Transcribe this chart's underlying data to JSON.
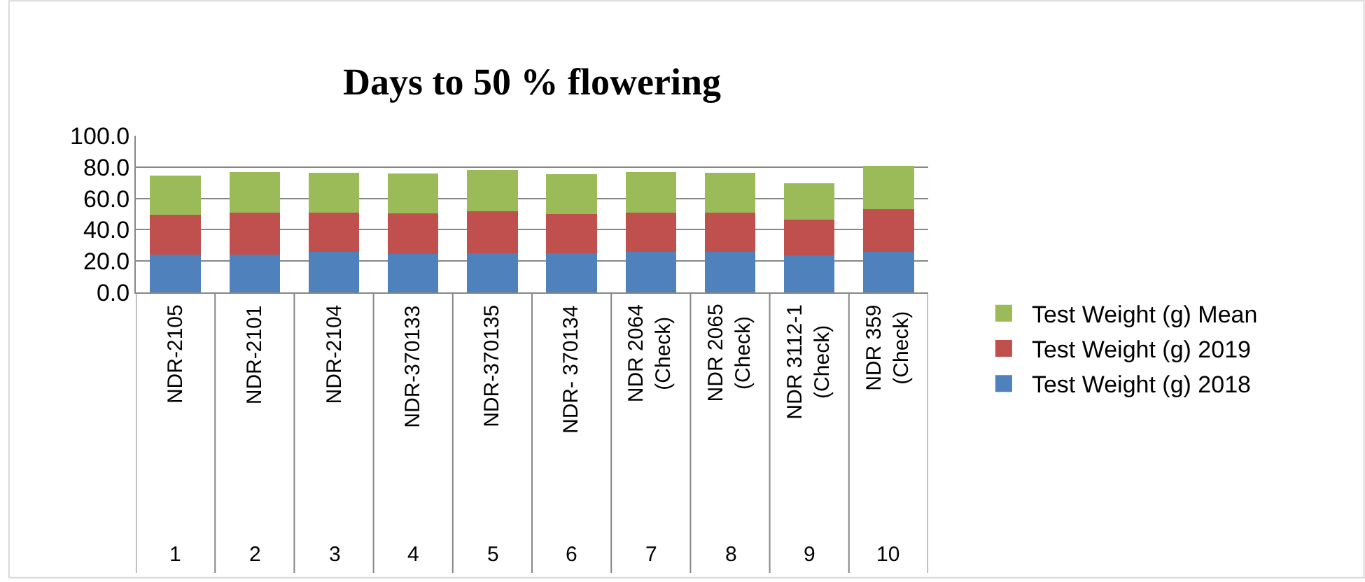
{
  "chart_data": {
    "type": "bar",
    "title": "Days to 50 % flowering",
    "stacked": true,
    "categories": [
      "NDR-2105",
      "NDR-2101",
      "NDR-2104",
      "NDR-370133",
      "NDR-370135",
      "NDR- 370134",
      "NDR 2064 (Check)",
      "NDR 2065 (Check)",
      "NDR 3112-1 (Check)",
      "NDR 359 (Check)"
    ],
    "series": [
      {
        "name": "Test Weight (g) 2018",
        "color": "#4f81bd",
        "values": [
          24,
          24,
          26,
          24.5,
          25,
          25,
          26,
          26,
          23.5,
          26
        ]
      },
      {
        "name": "Test Weight (g) 2019",
        "color": "#c0504d",
        "values": [
          25.5,
          27,
          25,
          26,
          27,
          25,
          25,
          25,
          23,
          27
        ]
      },
      {
        "name": "Test Weight (g) Mean",
        "color": "#9bbb59",
        "values": [
          25,
          26,
          25.5,
          25.5,
          26,
          25.5,
          26,
          25.5,
          23,
          28
        ]
      }
    ],
    "annotations": [
      "1",
      "2",
      "3",
      "4",
      "5",
      "6",
      "7",
      "8",
      "9",
      "10"
    ],
    "ylim": [
      0,
      100
    ],
    "yticks": [
      {
        "value": 0,
        "label": "0.0"
      },
      {
        "value": 20,
        "label": "20.0"
      },
      {
        "value": 40,
        "label": "40.0"
      },
      {
        "value": 60,
        "label": "60.0"
      },
      {
        "value": 80,
        "label": "80.0"
      },
      {
        "value": 100,
        "label": "100.0"
      }
    ],
    "grid": "y",
    "legend": "right"
  }
}
